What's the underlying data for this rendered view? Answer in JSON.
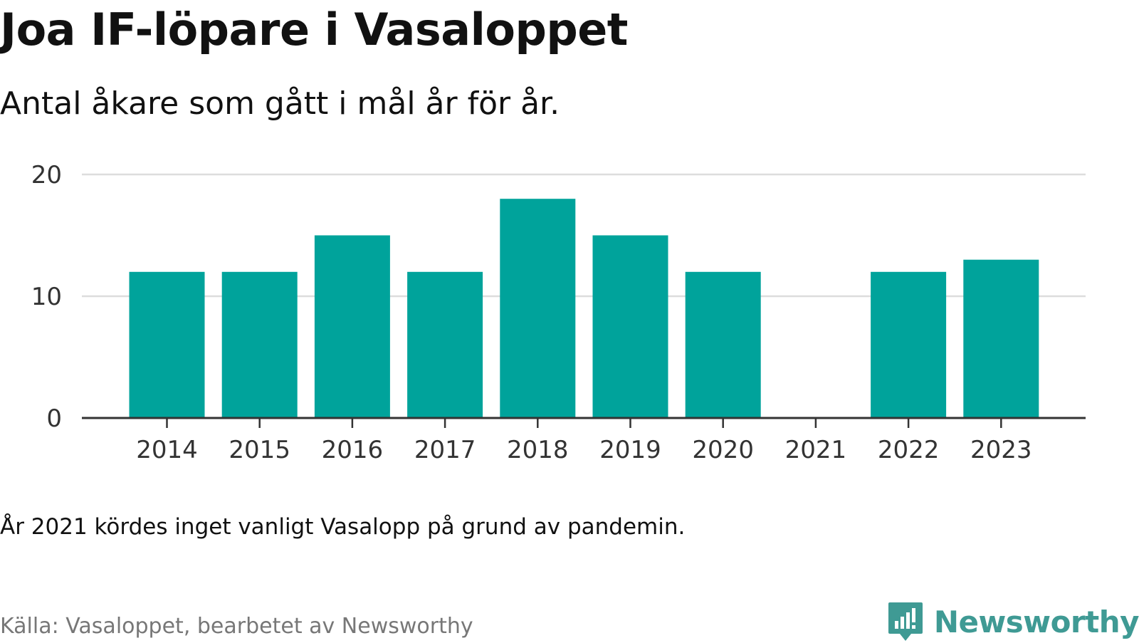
{
  "header": {
    "title": "Joa IF-löpare i Vasaloppet",
    "subtitle": "Antal åkare som gått i mål år för år."
  },
  "footer": {
    "note": "År 2021 kördes inget vanligt Vasalopp på grund av pandemin.",
    "source": "Källa: Vasaloppet, bearbetet av Newsworthy",
    "brand_name": "Newsworthy",
    "brand_icon": "newsworthy-logo-icon"
  },
  "colors": {
    "bar": "#00a39b",
    "grid": "#dddddd",
    "axis": "#333333",
    "brand": "#3f9a94"
  },
  "chart_data": {
    "type": "bar",
    "title": "Joa IF-löpare i Vasaloppet",
    "subtitle": "Antal åkare som gått i mål år för år.",
    "xlabel": "",
    "ylabel": "",
    "categories": [
      "2014",
      "2015",
      "2016",
      "2017",
      "2018",
      "2019",
      "2020",
      "2021",
      "2022",
      "2023"
    ],
    "values": [
      12,
      12,
      15,
      12,
      18,
      15,
      12,
      0,
      12,
      13
    ],
    "ylim": [
      0,
      20
    ],
    "yticks": [
      0,
      10,
      20
    ],
    "grid": true,
    "legend": "none"
  }
}
